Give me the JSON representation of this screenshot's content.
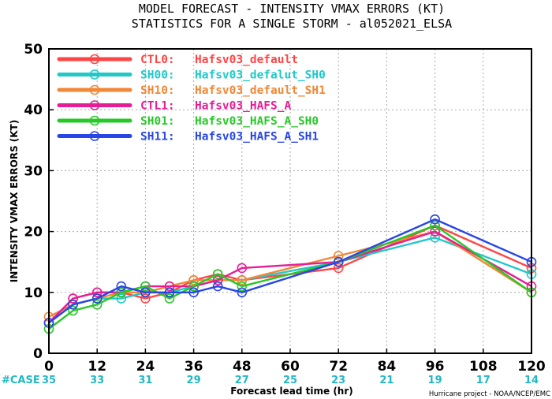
{
  "chart_data": {
    "type": "line",
    "title": "MODEL FORECAST - INTENSITY VMAX ERRORS (KT)",
    "subtitle": "STATISTICS FOR A SINGLE STORM - al052021_ELSA",
    "xlabel": "Forecast lead time (hr)",
    "ylabel": "INTENSITY VMAX ERRORS (KT)",
    "x": [
      0,
      6,
      12,
      18,
      24,
      30,
      36,
      42,
      48,
      72,
      96,
      120
    ],
    "xticks": [
      "0",
      "12",
      "24",
      "36",
      "48",
      "60",
      "72",
      "84",
      "96",
      "108",
      "120"
    ],
    "xlim": [
      0,
      120
    ],
    "ylim": [
      0,
      50
    ],
    "yticks": [
      "0",
      "10",
      "20",
      "30",
      "40",
      "50"
    ],
    "grid": true,
    "legend_position": "top-left",
    "series": [
      {
        "name": "CTL0:",
        "label": "Hafsv03_default",
        "color": "#ff4545",
        "values": [
          5,
          9,
          10,
          10,
          9,
          10,
          12,
          13,
          12,
          14,
          21,
          14
        ]
      },
      {
        "name": "SH00:",
        "label": "Hafsv03_defalut_SH0",
        "color": "#22c8c8",
        "values": [
          5,
          8,
          9,
          9,
          10,
          10,
          11,
          12,
          12,
          15,
          19,
          13
        ]
      },
      {
        "name": "SH10:",
        "label": "Hafsv03_default_SH1",
        "color": "#f08838",
        "values": [
          6,
          8,
          9,
          10,
          10,
          11,
          12,
          12,
          12,
          16,
          20,
          10
        ]
      },
      {
        "name": "CTL1:",
        "label": "Hafsv03_HAFS_A",
        "color": "#e61e96",
        "values": [
          5,
          9,
          10,
          10,
          11,
          11,
          11,
          12,
          14,
          15,
          20,
          11
        ]
      },
      {
        "name": "SH01:",
        "label": "Hafsv03_HAFS_A_SH0",
        "color": "#28c828",
        "values": [
          4,
          7,
          8,
          10,
          11,
          9,
          11,
          13,
          11,
          15,
          21,
          10
        ]
      },
      {
        "name": "SH11:",
        "label": "Hafsv03_HAFS_A_SH1",
        "color": "#2846e6",
        "values": [
          5,
          8,
          9,
          11,
          10,
          10,
          10,
          11,
          10,
          15,
          22,
          15
        ]
      }
    ],
    "case_label": "#CASE",
    "case_counts": [
      {
        "x": 0,
        "n": "35"
      },
      {
        "x": 12,
        "n": "33"
      },
      {
        "x": 24,
        "n": "31"
      },
      {
        "x": 36,
        "n": "29"
      },
      {
        "x": 48,
        "n": "27"
      },
      {
        "x": 60,
        "n": "25"
      },
      {
        "x": 72,
        "n": "23"
      },
      {
        "x": 84,
        "n": "21"
      },
      {
        "x": 96,
        "n": "19"
      },
      {
        "x": 108,
        "n": "17"
      },
      {
        "x": 120,
        "n": "14"
      }
    ],
    "credit": "Hurricane project - NOAA/NCEP/EMC"
  }
}
